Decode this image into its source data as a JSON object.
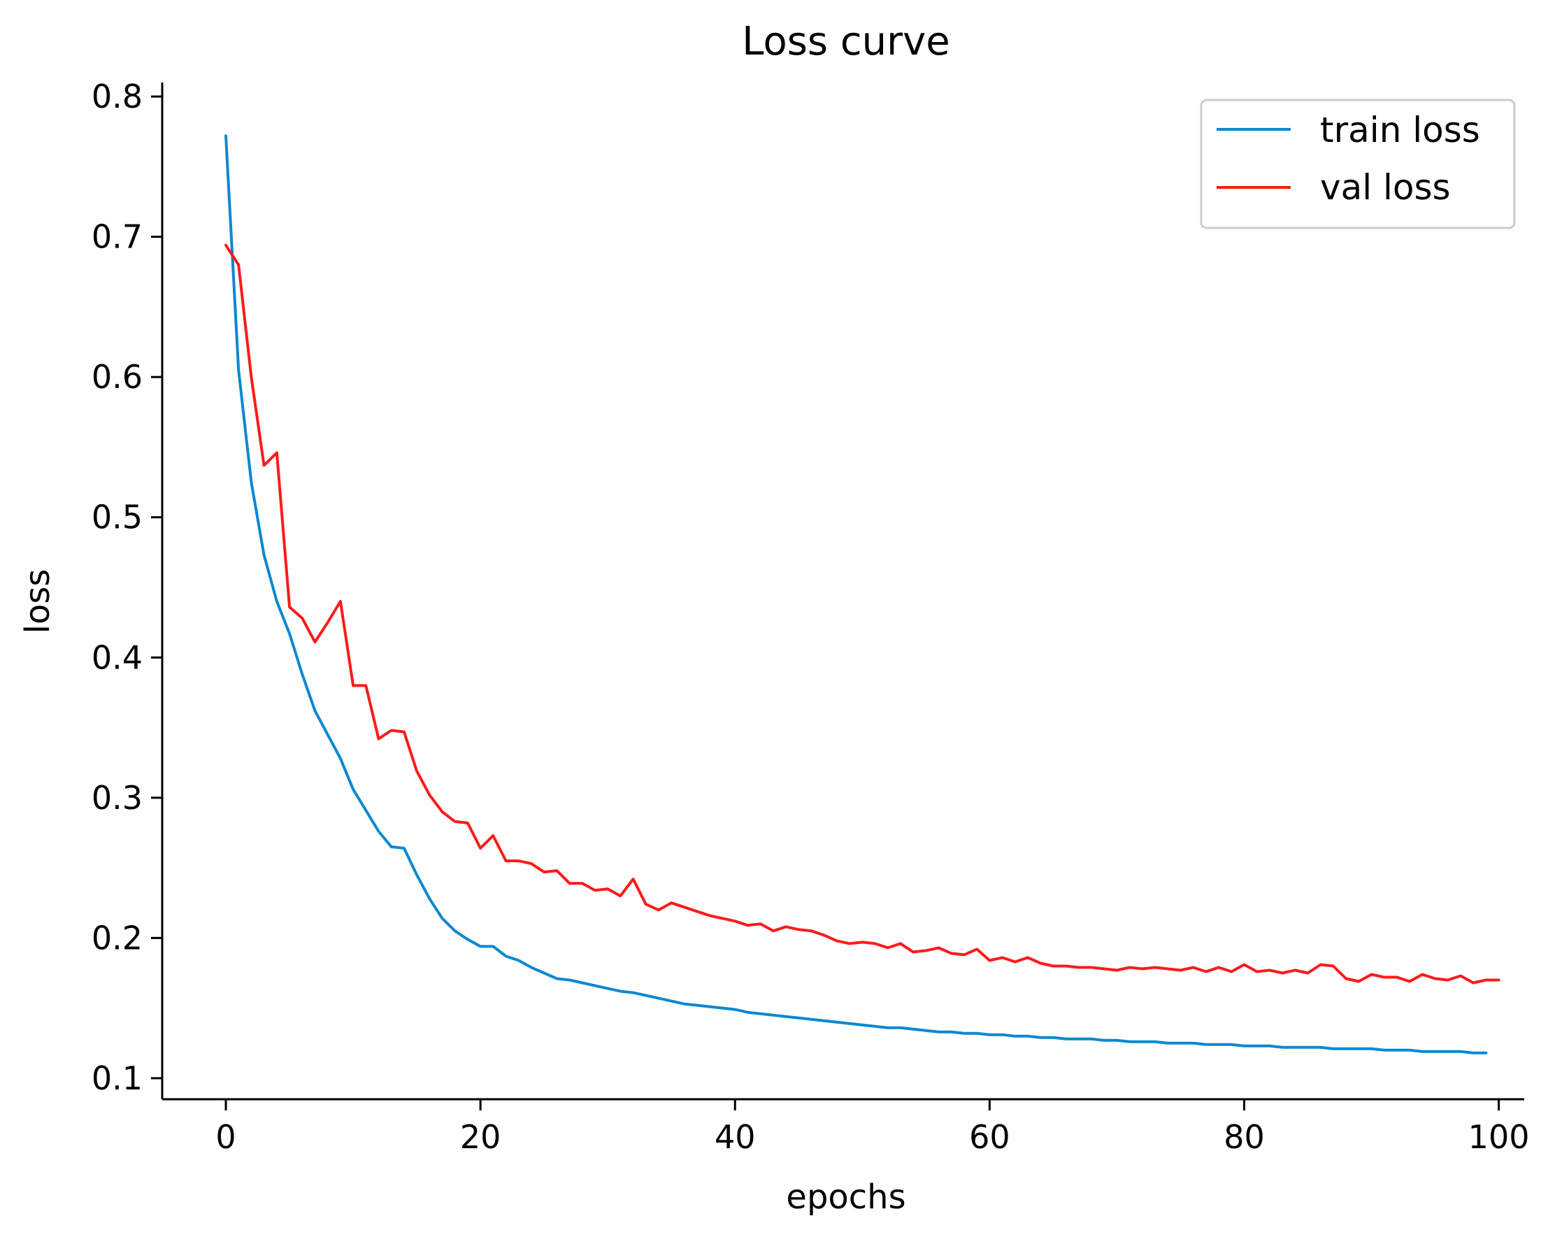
{
  "chart_data": {
    "type": "line",
    "title": "Loss curve",
    "xlabel": "epochs",
    "ylabel": "loss",
    "xlim": [
      -5,
      102
    ],
    "ylim": [
      0.085,
      0.81
    ],
    "xticks": [
      0,
      20,
      40,
      60,
      80,
      100
    ],
    "xtick_labels": [
      "0",
      "20",
      "40",
      "60",
      "80",
      "100"
    ],
    "yticks": [
      0.1,
      0.2,
      0.3,
      0.4,
      0.5,
      0.6,
      0.7,
      0.8
    ],
    "ytick_labels": [
      "0.1",
      "0.2",
      "0.3",
      "0.4",
      "0.5",
      "0.6",
      "0.7",
      "0.8"
    ],
    "grid": false,
    "legend_position": "top-right",
    "series": [
      {
        "name": "train loss",
        "color": "#0a88d0",
        "x_start": 0,
        "x_step": 1,
        "values": [
          0.772,
          0.605,
          0.525,
          0.473,
          0.44,
          0.417,
          0.388,
          0.362,
          0.345,
          0.328,
          0.306,
          0.291,
          0.276,
          0.265,
          0.264,
          0.245,
          0.228,
          0.214,
          0.205,
          0.199,
          0.194,
          0.194,
          0.187,
          0.184,
          0.179,
          0.175,
          0.171,
          0.17,
          0.168,
          0.166,
          0.164,
          0.162,
          0.161,
          0.159,
          0.157,
          0.155,
          0.153,
          0.152,
          0.151,
          0.15,
          0.149,
          0.147,
          0.146,
          0.145,
          0.144,
          0.143,
          0.142,
          0.141,
          0.14,
          0.139,
          0.138,
          0.137,
          0.136,
          0.136,
          0.135,
          0.134,
          0.133,
          0.133,
          0.132,
          0.132,
          0.131,
          0.131,
          0.13,
          0.13,
          0.129,
          0.129,
          0.128,
          0.128,
          0.128,
          0.127,
          0.127,
          0.126,
          0.126,
          0.126,
          0.125,
          0.125,
          0.125,
          0.124,
          0.124,
          0.124,
          0.123,
          0.123,
          0.123,
          0.122,
          0.122,
          0.122,
          0.122,
          0.121,
          0.121,
          0.121,
          0.121,
          0.12,
          0.12,
          0.12,
          0.119,
          0.119,
          0.119,
          0.119,
          0.118,
          0.118
        ]
      },
      {
        "name": "val loss",
        "color": "#ff1a1a",
        "x_start": 0,
        "x_step": 1,
        "values": [
          0.694,
          0.68,
          0.6,
          0.537,
          0.546,
          0.436,
          0.428,
          0.411,
          0.425,
          0.44,
          0.38,
          0.38,
          0.342,
          0.348,
          0.347,
          0.319,
          0.302,
          0.29,
          0.283,
          0.282,
          0.264,
          0.273,
          0.255,
          0.255,
          0.253,
          0.247,
          0.248,
          0.239,
          0.239,
          0.234,
          0.235,
          0.23,
          0.242,
          0.224,
          0.22,
          0.225,
          0.222,
          0.219,
          0.216,
          0.214,
          0.212,
          0.209,
          0.21,
          0.205,
          0.208,
          0.206,
          0.205,
          0.202,
          0.198,
          0.196,
          0.197,
          0.196,
          0.193,
          0.196,
          0.19,
          0.191,
          0.193,
          0.189,
          0.188,
          0.192,
          0.184,
          0.186,
          0.183,
          0.186,
          0.182,
          0.18,
          0.18,
          0.179,
          0.179,
          0.178,
          0.177,
          0.179,
          0.178,
          0.179,
          0.178,
          0.177,
          0.179,
          0.176,
          0.179,
          0.176,
          0.181,
          0.176,
          0.177,
          0.175,
          0.177,
          0.175,
          0.181,
          0.18,
          0.171,
          0.169,
          0.174,
          0.172,
          0.172,
          0.169,
          0.174,
          0.171,
          0.17,
          0.173,
          0.168,
          0.17,
          0.17
        ]
      }
    ]
  }
}
